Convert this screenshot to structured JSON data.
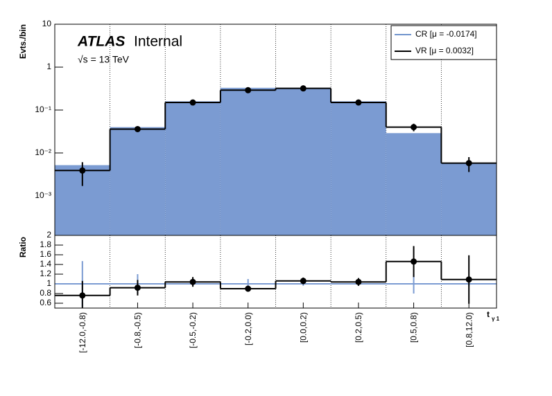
{
  "chart_data": [
    {
      "type": "bar",
      "ylabel": "Evts./bin",
      "brand": "ATLAS",
      "status": "Internal",
      "energy": "√s = 13 TeV",
      "log_y": true,
      "ylim": [
        0.00012,
        10
      ],
      "yticks": [
        {
          "value": 0.001,
          "label": "10⁻³"
        },
        {
          "value": 0.01,
          "label": "10⁻²"
        },
        {
          "value": 0.1,
          "label": "10⁻¹"
        },
        1,
        10
      ],
      "legend": "top-right",
      "series": [
        {
          "name": "CR [μ = -0.0174]",
          "color": "#7b9bd2",
          "style": "fill",
          "values": [
            0.0052,
            0.04,
            0.16,
            0.33,
            0.33,
            0.16,
            0.029,
            0.0058
          ]
        },
        {
          "name": "VR [μ = 0.0032]",
          "color": "#000000",
          "style": "step",
          "values": [
            0.0039,
            0.036,
            0.15,
            0.29,
            0.32,
            0.15,
            0.04,
            0.0058
          ],
          "errors": [
            0.0022,
            0.004,
            0.01,
            0.015,
            0.015,
            0.01,
            0.008,
            0.0022
          ]
        }
      ]
    },
    {
      "type": "bar",
      "ylabel": "Ratio",
      "xlabel": "t",
      "xlabel_sub": "γ 1",
      "categories": [
        "[-12.0,-0.8)",
        "[-0.8,-0.5)",
        "[-0.5,-0.2)",
        "[-0.2,0.0)",
        "[0.0,0.2)",
        "[0.2,0.5)",
        "[0.5,0.8)",
        "[0.8,12.0)"
      ],
      "ylim": [
        0.5,
        2
      ],
      "yticks": [
        0.6,
        0.8,
        1,
        1.2,
        1.4,
        1.6,
        1.8,
        2
      ],
      "series": [
        {
          "color": "#7b9bd2",
          "style": "line",
          "values": [
            1,
            1,
            1,
            1,
            1,
            1,
            1,
            1
          ],
          "errors": [
            0.47,
            0.2,
            0.05,
            0.1,
            0.04,
            0.04,
            0.2,
            0.05
          ]
        },
        {
          "color": "#000000",
          "style": "step",
          "values": [
            0.76,
            0.92,
            1.04,
            0.9,
            1.06,
            1.04,
            1.46,
            1.09
          ],
          "errors": [
            0.3,
            0.16,
            0.1,
            0.06,
            0.07,
            0.08,
            0.32,
            0.5
          ]
        }
      ]
    }
  ]
}
